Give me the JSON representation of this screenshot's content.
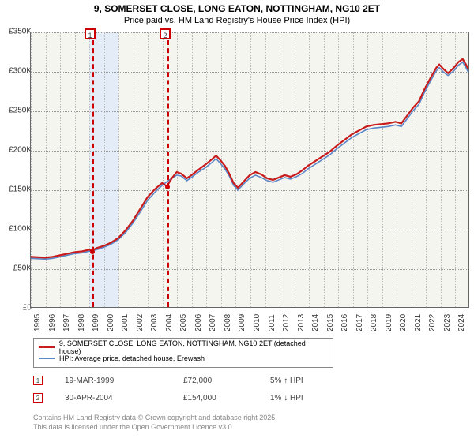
{
  "title": "9, SOMERSET CLOSE, LONG EATON, NOTTINGHAM, NG10 2ET",
  "subtitle": "Price paid vs. HM Land Registry's House Price Index (HPI)",
  "chart": {
    "type": "line",
    "background_color": "#f5f5f0",
    "grid_color": "#999999",
    "xlim": [
      1995,
      2025
    ],
    "ylim": [
      0,
      350000
    ],
    "ytick_step": 50000,
    "xtick_step": 1,
    "y_labels": [
      "£0",
      "£50K",
      "£100K",
      "£150K",
      "£200K",
      "£250K",
      "£300K",
      "£350K"
    ],
    "x_labels": [
      "1995",
      "1996",
      "1997",
      "1998",
      "1999",
      "2000",
      "2001",
      "2002",
      "2003",
      "2004",
      "2005",
      "2006",
      "2007",
      "2008",
      "2009",
      "2010",
      "2011",
      "2012",
      "2013",
      "2014",
      "2015",
      "2016",
      "2017",
      "2018",
      "2019",
      "2020",
      "2021",
      "2022",
      "2023",
      "2024"
    ],
    "band": {
      "start": 1999,
      "end": 2001,
      "color": "#e4ecf7"
    },
    "markers": [
      {
        "label": "1",
        "x": 1999.21,
        "value": 72000
      },
      {
        "label": "2",
        "x": 2004.33,
        "value": 154000
      }
    ],
    "series": [
      {
        "name": "9, SOMERSET CLOSE, LONG EATON, NOTTINGHAM, NG10 2ET (detached house)",
        "color": "#c81b1b",
        "width": 2.2,
        "data": [
          [
            1995,
            64000
          ],
          [
            1995.5,
            63500
          ],
          [
            1996,
            63000
          ],
          [
            1996.5,
            64000
          ],
          [
            1997,
            66000
          ],
          [
            1997.5,
            68000
          ],
          [
            1998,
            70000
          ],
          [
            1998.5,
            71000
          ],
          [
            1999,
            73000
          ],
          [
            1999.21,
            72000
          ],
          [
            1999.5,
            75000
          ],
          [
            2000,
            78000
          ],
          [
            2000.5,
            82000
          ],
          [
            2001,
            88000
          ],
          [
            2001.5,
            98000
          ],
          [
            2002,
            110000
          ],
          [
            2002.5,
            125000
          ],
          [
            2003,
            140000
          ],
          [
            2003.5,
            150000
          ],
          [
            2004,
            158000
          ],
          [
            2004.33,
            154000
          ],
          [
            2004.7,
            165000
          ],
          [
            2005,
            172000
          ],
          [
            2005.3,
            170000
          ],
          [
            2005.7,
            164000
          ],
          [
            2006,
            168000
          ],
          [
            2006.5,
            175000
          ],
          [
            2007,
            182000
          ],
          [
            2007.4,
            188000
          ],
          [
            2007.7,
            193000
          ],
          [
            2008,
            187000
          ],
          [
            2008.3,
            180000
          ],
          [
            2008.6,
            170000
          ],
          [
            2008.9,
            158000
          ],
          [
            2009.2,
            152000
          ],
          [
            2009.6,
            160000
          ],
          [
            2010,
            168000
          ],
          [
            2010.4,
            172000
          ],
          [
            2010.8,
            169000
          ],
          [
            2011.2,
            164000
          ],
          [
            2011.6,
            162000
          ],
          [
            2012,
            165000
          ],
          [
            2012.4,
            168000
          ],
          [
            2012.8,
            166000
          ],
          [
            2013.2,
            169000
          ],
          [
            2013.6,
            174000
          ],
          [
            2014,
            180000
          ],
          [
            2014.5,
            186000
          ],
          [
            2015,
            192000
          ],
          [
            2015.5,
            198000
          ],
          [
            2016,
            206000
          ],
          [
            2016.5,
            213000
          ],
          [
            2017,
            220000
          ],
          [
            2017.5,
            225000
          ],
          [
            2018,
            230000
          ],
          [
            2018.5,
            232000
          ],
          [
            2019,
            233000
          ],
          [
            2019.5,
            234000
          ],
          [
            2020,
            236000
          ],
          [
            2020.4,
            234000
          ],
          [
            2020.8,
            244000
          ],
          [
            2021.2,
            254000
          ],
          [
            2021.6,
            262000
          ],
          [
            2022,
            278000
          ],
          [
            2022.4,
            292000
          ],
          [
            2022.8,
            305000
          ],
          [
            2023,
            309000
          ],
          [
            2023.3,
            303000
          ],
          [
            2023.6,
            298000
          ],
          [
            2024,
            305000
          ],
          [
            2024.3,
            312000
          ],
          [
            2024.6,
            316000
          ],
          [
            2024.8,
            310000
          ],
          [
            2025,
            303000
          ]
        ]
      },
      {
        "name": "HPI: Average price, detached house, Erewash",
        "color": "#5b87c7",
        "width": 1.6,
        "data": [
          [
            1995,
            62000
          ],
          [
            1995.5,
            61500
          ],
          [
            1996,
            61000
          ],
          [
            1996.5,
            62000
          ],
          [
            1997,
            64000
          ],
          [
            1997.5,
            66000
          ],
          [
            1998,
            68000
          ],
          [
            1998.5,
            69000
          ],
          [
            1999,
            71000
          ],
          [
            1999.5,
            73000
          ],
          [
            2000,
            76000
          ],
          [
            2000.5,
            80000
          ],
          [
            2001,
            86000
          ],
          [
            2001.5,
            95000
          ],
          [
            2002,
            107000
          ],
          [
            2002.5,
            121000
          ],
          [
            2003,
            136000
          ],
          [
            2003.5,
            146000
          ],
          [
            2004,
            155000
          ],
          [
            2004.5,
            162000
          ],
          [
            2005,
            168000
          ],
          [
            2005.3,
            167000
          ],
          [
            2005.7,
            161000
          ],
          [
            2006,
            165000
          ],
          [
            2006.5,
            172000
          ],
          [
            2007,
            178000
          ],
          [
            2007.4,
            184000
          ],
          [
            2007.7,
            189000
          ],
          [
            2008,
            183000
          ],
          [
            2008.3,
            176000
          ],
          [
            2008.6,
            167000
          ],
          [
            2008.9,
            155000
          ],
          [
            2009.2,
            149000
          ],
          [
            2009.6,
            157000
          ],
          [
            2010,
            164000
          ],
          [
            2010.4,
            168000
          ],
          [
            2010.8,
            165000
          ],
          [
            2011.2,
            161000
          ],
          [
            2011.6,
            159000
          ],
          [
            2012,
            162000
          ],
          [
            2012.4,
            165000
          ],
          [
            2012.8,
            163000
          ],
          [
            2013.2,
            166000
          ],
          [
            2013.6,
            170000
          ],
          [
            2014,
            176000
          ],
          [
            2014.5,
            182000
          ],
          [
            2015,
            188000
          ],
          [
            2015.5,
            194000
          ],
          [
            2016,
            202000
          ],
          [
            2016.5,
            209000
          ],
          [
            2017,
            216000
          ],
          [
            2017.5,
            221000
          ],
          [
            2018,
            226000
          ],
          [
            2018.5,
            228000
          ],
          [
            2019,
            229000
          ],
          [
            2019.5,
            230000
          ],
          [
            2020,
            232000
          ],
          [
            2020.4,
            230000
          ],
          [
            2020.8,
            240000
          ],
          [
            2021.2,
            250000
          ],
          [
            2021.6,
            258000
          ],
          [
            2022,
            274000
          ],
          [
            2022.4,
            288000
          ],
          [
            2022.8,
            301000
          ],
          [
            2023,
            305000
          ],
          [
            2023.3,
            299000
          ],
          [
            2023.6,
            295000
          ],
          [
            2024,
            301000
          ],
          [
            2024.3,
            308000
          ],
          [
            2024.6,
            312000
          ],
          [
            2024.8,
            306000
          ],
          [
            2025,
            299000
          ]
        ]
      }
    ]
  },
  "legend": {
    "items": [
      {
        "color": "#c81b1b",
        "label": "9, SOMERSET CLOSE, LONG EATON, NOTTINGHAM, NG10 2ET (detached house)"
      },
      {
        "color": "#5b87c7",
        "label": "HPI: Average price, detached house, Erewash"
      }
    ]
  },
  "events": [
    {
      "num": "1",
      "date": "19-MAR-1999",
      "price": "£72,000",
      "pct": "5% ↑ HPI"
    },
    {
      "num": "2",
      "date": "30-APR-2004",
      "price": "£154,000",
      "pct": "1% ↓ HPI"
    }
  ],
  "attribution": {
    "line1": "Contains HM Land Registry data © Crown copyright and database right 2025.",
    "line2": "This data is licensed under the Open Government Licence v3.0."
  }
}
